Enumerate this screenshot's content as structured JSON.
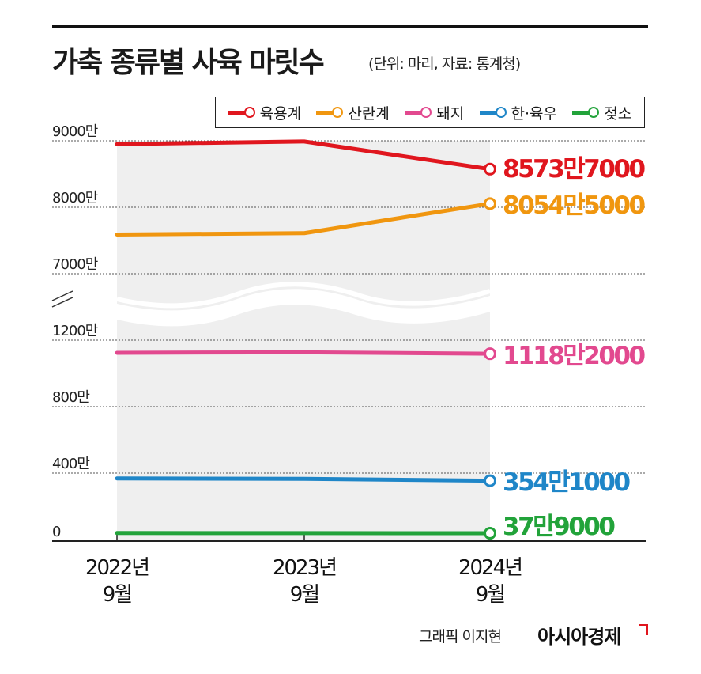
{
  "header": {
    "title": "가축 종류별 사육 마릿수",
    "subtitle": "(단위: 마리, 자료: 통계청)"
  },
  "chart_data": {
    "type": "line",
    "title": "가축 종류별 사육 마릿수",
    "categories": [
      "2022년 9월",
      "2023년 9월",
      "2024년 9월"
    ],
    "x_tick_lines": [
      [
        "2022년",
        "9월"
      ],
      [
        "2023년",
        "9월"
      ],
      [
        "2024년",
        "9월"
      ]
    ],
    "y_ticks_upper": [
      "9000만",
      "8000만",
      "7000만"
    ],
    "y_ticks_lower": [
      "1200만",
      "800만",
      "400만",
      "0"
    ],
    "axis_break": true,
    "series": [
      {
        "name": "육용계",
        "color": "#e0161e",
        "values": [
          89500000,
          89900000,
          85737000
        ],
        "end_label": "8573만7000"
      },
      {
        "name": "산란계",
        "color": "#f0960f",
        "values": [
          75900000,
          76100000,
          80545000
        ],
        "end_label": "8054만5000"
      },
      {
        "name": "돼지",
        "color": "#e2498f",
        "values": [
          11240000,
          11270000,
          11182000
        ],
        "end_label": "1118만2000"
      },
      {
        "name": "한·육우",
        "color": "#1f86c8",
        "values": [
          3678000,
          3656000,
          3541000
        ],
        "end_label": "354만1000"
      },
      {
        "name": "젖소",
        "color": "#22a33a",
        "values": [
          390000,
          385000,
          379000
        ],
        "end_label": "37만9000"
      }
    ],
    "grid": true,
    "legend_position": "top-right"
  },
  "footer": {
    "credit": "그래픽 이지현",
    "brand": "아시아경제"
  },
  "icons": {
    "axis_break": "double-slash-icon",
    "brand_mark": "corner-flag-icon"
  }
}
